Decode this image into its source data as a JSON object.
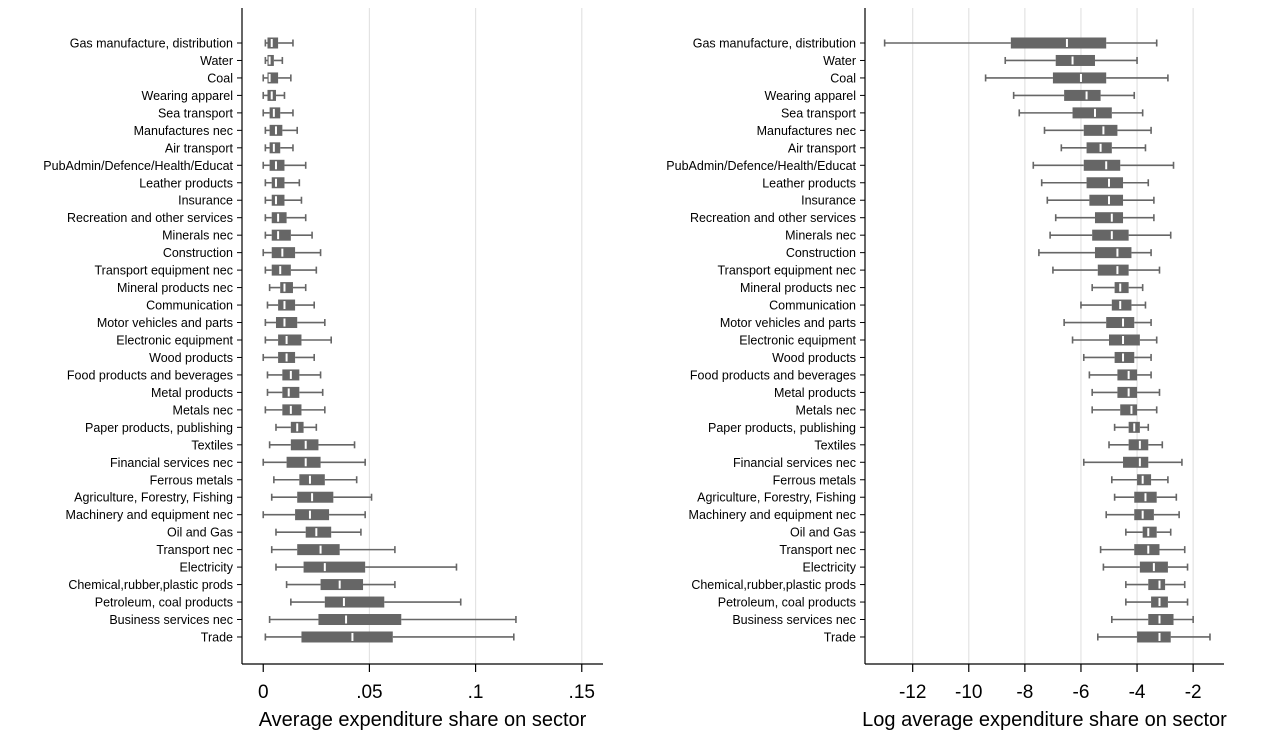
{
  "chart_data": [
    {
      "type": "boxplot",
      "xlabel": "Average expenditure share on sector",
      "xlim": [
        -0.01,
        0.16
      ],
      "xticks": [
        0,
        0.05,
        0.1,
        0.15
      ],
      "xtick_labels": [
        "0",
        ".05",
        ".1",
        ".15"
      ],
      "grid": "vertical",
      "boxes": [
        {
          "name": "Gas manufacture, distribution",
          "whisker_low": 0.001,
          "q1": 0.002,
          "median": 0.004,
          "q3": 0.007,
          "whisker_high": 0.014
        },
        {
          "name": "Water",
          "whisker_low": 0.001,
          "q1": 0.002,
          "median": 0.003,
          "q3": 0.005,
          "whisker_high": 0.009
        },
        {
          "name": "Coal",
          "whisker_low": 0.0,
          "q1": 0.002,
          "median": 0.003,
          "q3": 0.007,
          "whisker_high": 0.013
        },
        {
          "name": "Wearing apparel",
          "whisker_low": 0.0,
          "q1": 0.002,
          "median": 0.004,
          "q3": 0.006,
          "whisker_high": 0.01
        },
        {
          "name": "Sea transport",
          "whisker_low": 0.0,
          "q1": 0.003,
          "median": 0.005,
          "q3": 0.008,
          "whisker_high": 0.014
        },
        {
          "name": "Manufactures nec",
          "whisker_low": 0.001,
          "q1": 0.003,
          "median": 0.006,
          "q3": 0.009,
          "whisker_high": 0.016
        },
        {
          "name": "Air transport",
          "whisker_low": 0.001,
          "q1": 0.003,
          "median": 0.005,
          "q3": 0.008,
          "whisker_high": 0.014
        },
        {
          "name": "PubAdmin/Defence/Health/Educat",
          "whisker_low": 0.0,
          "q1": 0.003,
          "median": 0.006,
          "q3": 0.01,
          "whisker_high": 0.02
        },
        {
          "name": "Leather products",
          "whisker_low": 0.001,
          "q1": 0.004,
          "median": 0.006,
          "q3": 0.01,
          "whisker_high": 0.017
        },
        {
          "name": "Insurance",
          "whisker_low": 0.001,
          "q1": 0.004,
          "median": 0.006,
          "q3": 0.01,
          "whisker_high": 0.018
        },
        {
          "name": "Recreation and other services",
          "whisker_low": 0.001,
          "q1": 0.004,
          "median": 0.007,
          "q3": 0.011,
          "whisker_high": 0.02
        },
        {
          "name": "Minerals nec",
          "whisker_low": 0.001,
          "q1": 0.004,
          "median": 0.007,
          "q3": 0.013,
          "whisker_high": 0.023
        },
        {
          "name": "Construction",
          "whisker_low": 0.0,
          "q1": 0.004,
          "median": 0.009,
          "q3": 0.015,
          "whisker_high": 0.027
        },
        {
          "name": "Transport equipment nec",
          "whisker_low": 0.001,
          "q1": 0.004,
          "median": 0.008,
          "q3": 0.013,
          "whisker_high": 0.025
        },
        {
          "name": "Mineral products nec",
          "whisker_low": 0.003,
          "q1": 0.008,
          "median": 0.01,
          "q3": 0.014,
          "whisker_high": 0.02
        },
        {
          "name": "Communication",
          "whisker_low": 0.002,
          "q1": 0.007,
          "median": 0.01,
          "q3": 0.015,
          "whisker_high": 0.024
        },
        {
          "name": "Motor vehicles and parts",
          "whisker_low": 0.001,
          "q1": 0.006,
          "median": 0.01,
          "q3": 0.016,
          "whisker_high": 0.029
        },
        {
          "name": "Electronic equipment",
          "whisker_low": 0.001,
          "q1": 0.007,
          "median": 0.011,
          "q3": 0.018,
          "whisker_high": 0.032
        },
        {
          "name": "Wood products",
          "whisker_low": 0.0,
          "q1": 0.007,
          "median": 0.011,
          "q3": 0.015,
          "whisker_high": 0.024
        },
        {
          "name": "Food products and beverages",
          "whisker_low": 0.002,
          "q1": 0.009,
          "median": 0.013,
          "q3": 0.017,
          "whisker_high": 0.027
        },
        {
          "name": "Metal products",
          "whisker_low": 0.002,
          "q1": 0.009,
          "median": 0.012,
          "q3": 0.017,
          "whisker_high": 0.028
        },
        {
          "name": "Metals nec",
          "whisker_low": 0.001,
          "q1": 0.009,
          "median": 0.013,
          "q3": 0.018,
          "whisker_high": 0.029
        },
        {
          "name": "Paper products, publishing",
          "whisker_low": 0.006,
          "q1": 0.013,
          "median": 0.016,
          "q3": 0.019,
          "whisker_high": 0.025
        },
        {
          "name": "Textiles",
          "whisker_low": 0.003,
          "q1": 0.013,
          "median": 0.02,
          "q3": 0.026,
          "whisker_high": 0.043
        },
        {
          "name": "Financial services nec",
          "whisker_low": 0.0,
          "q1": 0.011,
          "median": 0.02,
          "q3": 0.027,
          "whisker_high": 0.048
        },
        {
          "name": "Ferrous metals",
          "whisker_low": 0.005,
          "q1": 0.017,
          "median": 0.022,
          "q3": 0.029,
          "whisker_high": 0.044
        },
        {
          "name": "Agriculture, Forestry, Fishing",
          "whisker_low": 0.004,
          "q1": 0.016,
          "median": 0.023,
          "q3": 0.033,
          "whisker_high": 0.051
        },
        {
          "name": "Machinery and equipment nec",
          "whisker_low": 0.0,
          "q1": 0.015,
          "median": 0.022,
          "q3": 0.031,
          "whisker_high": 0.048
        },
        {
          "name": "Oil and Gas",
          "whisker_low": 0.006,
          "q1": 0.02,
          "median": 0.025,
          "q3": 0.032,
          "whisker_high": 0.046
        },
        {
          "name": "Transport nec",
          "whisker_low": 0.004,
          "q1": 0.016,
          "median": 0.027,
          "q3": 0.036,
          "whisker_high": 0.062
        },
        {
          "name": "Electricity",
          "whisker_low": 0.006,
          "q1": 0.019,
          "median": 0.029,
          "q3": 0.048,
          "whisker_high": 0.091
        },
        {
          "name": "Chemical,rubber,plastic prods",
          "whisker_low": 0.011,
          "q1": 0.027,
          "median": 0.036,
          "q3": 0.047,
          "whisker_high": 0.062
        },
        {
          "name": "Petroleum, coal products",
          "whisker_low": 0.013,
          "q1": 0.029,
          "median": 0.038,
          "q3": 0.057,
          "whisker_high": 0.093
        },
        {
          "name": "Business services nec",
          "whisker_low": 0.003,
          "q1": 0.026,
          "median": 0.039,
          "q3": 0.065,
          "whisker_high": 0.119
        },
        {
          "name": "Trade",
          "whisker_low": 0.001,
          "q1": 0.018,
          "median": 0.042,
          "q3": 0.061,
          "whisker_high": 0.118
        }
      ]
    },
    {
      "type": "boxplot",
      "xlabel": "Log average expenditure share on sector",
      "xlim": [
        -13.7,
        -0.9
      ],
      "xticks": [
        -12,
        -10,
        -8,
        -6,
        -4,
        -2
      ],
      "xtick_labels": [
        "-12",
        "-10",
        "-8",
        "-6",
        "-4",
        "-2"
      ],
      "grid": "vertical",
      "boxes": [
        {
          "name": "Gas manufacture, distribution",
          "whisker_low": -13.0,
          "q1": -8.5,
          "median": -6.5,
          "q3": -5.1,
          "whisker_high": -3.3
        },
        {
          "name": "Water",
          "whisker_low": -8.7,
          "q1": -6.9,
          "median": -6.3,
          "q3": -5.5,
          "whisker_high": -4.0
        },
        {
          "name": "Coal",
          "whisker_low": -9.4,
          "q1": -7.0,
          "median": -6.0,
          "q3": -5.1,
          "whisker_high": -2.9
        },
        {
          "name": "Wearing apparel",
          "whisker_low": -8.4,
          "q1": -6.6,
          "median": -5.8,
          "q3": -5.3,
          "whisker_high": -4.1
        },
        {
          "name": "Sea transport",
          "whisker_low": -8.2,
          "q1": -6.3,
          "median": -5.5,
          "q3": -4.9,
          "whisker_high": -3.8
        },
        {
          "name": "Manufactures nec",
          "whisker_low": -7.3,
          "q1": -5.9,
          "median": -5.2,
          "q3": -4.7,
          "whisker_high": -3.5
        },
        {
          "name": "Air transport",
          "whisker_low": -6.7,
          "q1": -5.8,
          "median": -5.3,
          "q3": -4.9,
          "whisker_high": -3.7
        },
        {
          "name": "PubAdmin/Defence/Health/Educat",
          "whisker_low": -7.7,
          "q1": -5.9,
          "median": -5.1,
          "q3": -4.6,
          "whisker_high": -2.7
        },
        {
          "name": "Leather products",
          "whisker_low": -7.4,
          "q1": -5.8,
          "median": -5.0,
          "q3": -4.5,
          "whisker_high": -3.6
        },
        {
          "name": "Insurance",
          "whisker_low": -7.2,
          "q1": -5.7,
          "median": -5.0,
          "q3": -4.5,
          "whisker_high": -3.4
        },
        {
          "name": "Recreation and other services",
          "whisker_low": -6.9,
          "q1": -5.5,
          "median": -4.9,
          "q3": -4.5,
          "whisker_high": -3.4
        },
        {
          "name": "Minerals nec",
          "whisker_low": -7.1,
          "q1": -5.6,
          "median": -4.9,
          "q3": -4.3,
          "whisker_high": -2.8
        },
        {
          "name": "Construction",
          "whisker_low": -7.5,
          "q1": -5.5,
          "median": -4.7,
          "q3": -4.2,
          "whisker_high": -3.5
        },
        {
          "name": "Transport equipment nec",
          "whisker_low": -7.0,
          "q1": -5.4,
          "median": -4.7,
          "q3": -4.3,
          "whisker_high": -3.2
        },
        {
          "name": "Mineral products nec",
          "whisker_low": -5.6,
          "q1": -4.8,
          "median": -4.6,
          "q3": -4.3,
          "whisker_high": -3.8
        },
        {
          "name": "Communication",
          "whisker_low": -6.0,
          "q1": -4.9,
          "median": -4.6,
          "q3": -4.2,
          "whisker_high": -3.7
        },
        {
          "name": "Motor vehicles and parts",
          "whisker_low": -6.6,
          "q1": -5.1,
          "median": -4.5,
          "q3": -4.1,
          "whisker_high": -3.5
        },
        {
          "name": "Electronic equipment",
          "whisker_low": -6.3,
          "q1": -5.0,
          "median": -4.5,
          "q3": -3.9,
          "whisker_high": -3.3
        },
        {
          "name": "Wood products",
          "whisker_low": -5.9,
          "q1": -4.8,
          "median": -4.5,
          "q3": -4.1,
          "whisker_high": -3.5
        },
        {
          "name": "Food products and beverages",
          "whisker_low": -5.7,
          "q1": -4.7,
          "median": -4.3,
          "q3": -4.0,
          "whisker_high": -3.5
        },
        {
          "name": "Metal products",
          "whisker_low": -5.6,
          "q1": -4.7,
          "median": -4.3,
          "q3": -4.0,
          "whisker_high": -3.2
        },
        {
          "name": "Metals nec",
          "whisker_low": -5.6,
          "q1": -4.6,
          "median": -4.2,
          "q3": -4.0,
          "whisker_high": -3.3
        },
        {
          "name": "Paper products, publishing",
          "whisker_low": -4.8,
          "q1": -4.3,
          "median": -4.1,
          "q3": -3.9,
          "whisker_high": -3.6
        },
        {
          "name": "Textiles",
          "whisker_low": -5.0,
          "q1": -4.3,
          "median": -3.9,
          "q3": -3.6,
          "whisker_high": -3.1
        },
        {
          "name": "Financial services nec",
          "whisker_low": -5.9,
          "q1": -4.5,
          "median": -3.9,
          "q3": -3.6,
          "whisker_high": -2.4
        },
        {
          "name": "Ferrous metals",
          "whisker_low": -4.9,
          "q1": -4.0,
          "median": -3.8,
          "q3": -3.5,
          "whisker_high": -2.9
        },
        {
          "name": "Agriculture, Forestry, Fishing",
          "whisker_low": -4.8,
          "q1": -4.1,
          "median": -3.7,
          "q3": -3.3,
          "whisker_high": -2.6
        },
        {
          "name": "Machinery and equipment nec",
          "whisker_low": -5.1,
          "q1": -4.1,
          "median": -3.8,
          "q3": -3.4,
          "whisker_high": -2.5
        },
        {
          "name": "Oil and Gas",
          "whisker_low": -4.4,
          "q1": -3.8,
          "median": -3.6,
          "q3": -3.3,
          "whisker_high": -2.8
        },
        {
          "name": "Transport nec",
          "whisker_low": -5.3,
          "q1": -4.1,
          "median": -3.6,
          "q3": -3.2,
          "whisker_high": -2.3
        },
        {
          "name": "Electricity",
          "whisker_low": -5.2,
          "q1": -3.9,
          "median": -3.4,
          "q3": -2.9,
          "whisker_high": -2.2
        },
        {
          "name": "Chemical,rubber,plastic prods",
          "whisker_low": -4.4,
          "q1": -3.6,
          "median": -3.2,
          "q3": -3.0,
          "whisker_high": -2.3
        },
        {
          "name": "Petroleum, coal products",
          "whisker_low": -4.4,
          "q1": -3.5,
          "median": -3.2,
          "q3": -2.9,
          "whisker_high": -2.2
        },
        {
          "name": "Business services nec",
          "whisker_low": -4.9,
          "q1": -3.6,
          "median": -3.2,
          "q3": -2.7,
          "whisker_high": -2.0
        },
        {
          "name": "Trade",
          "whisker_low": -5.4,
          "q1": -4.0,
          "median": -3.2,
          "q3": -2.8,
          "whisker_high": -1.4
        }
      ]
    }
  ],
  "style": {
    "box_color": "#666666",
    "median_color": "#ffffff",
    "grid_color": "#e3e3e3",
    "axis_color": "#000000"
  }
}
